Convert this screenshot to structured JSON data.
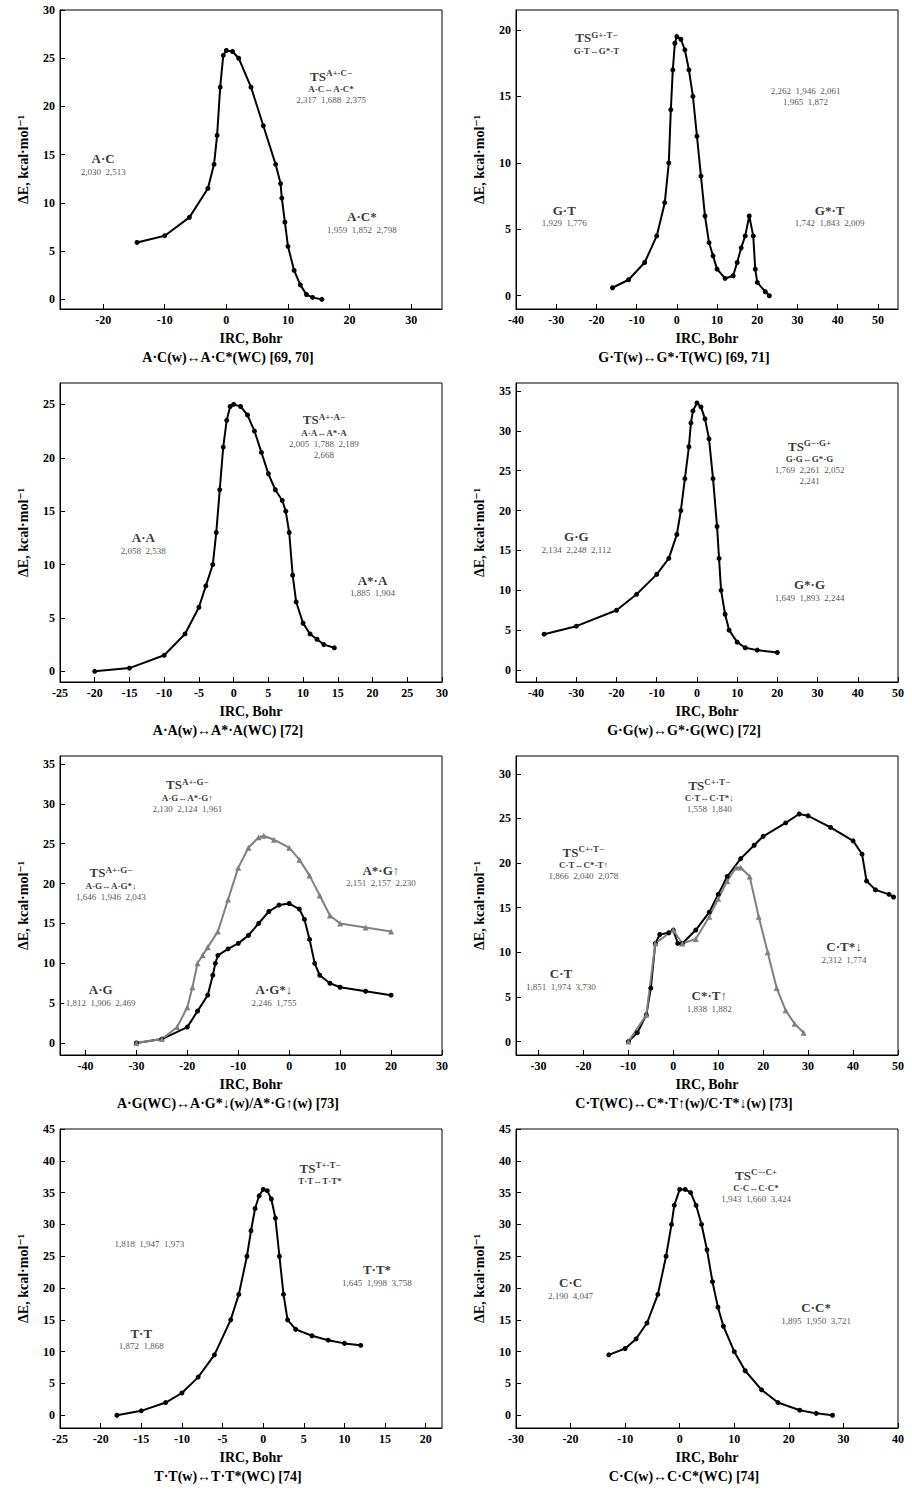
{
  "chart_data": [
    {
      "type": "line",
      "title": "A·C(w)↔A·C*(WC) [69, 70]",
      "x_label": "IRC, Bohr",
      "y_label": "ΔE, kcal·mol⁻¹",
      "xlim": [
        -27,
        35
      ],
      "xticks": [
        -20,
        -10,
        0,
        10,
        20,
        30
      ],
      "ylim": [
        -1,
        30
      ],
      "yticks": [
        0,
        5,
        10,
        15,
        20,
        25,
        30
      ],
      "grid": false,
      "series": [
        {
          "color": "#000000",
          "marker": "circle",
          "x": [
            -14.5,
            -10,
            -6,
            -3,
            -2,
            -1.5,
            -1,
            -0.5,
            0,
            1,
            2,
            4,
            6,
            8,
            8.8,
            9,
            9.5,
            10,
            11,
            12,
            13,
            14,
            15.5
          ],
          "values": [
            5.9,
            6.6,
            8.5,
            11.5,
            14,
            17,
            22,
            25.3,
            25.8,
            25.7,
            25,
            22,
            18,
            14,
            12,
            10.5,
            8,
            5.5,
            3,
            1.5,
            0.5,
            0.2,
            0
          ]
        }
      ],
      "annotations": [
        {
          "text": "A·C",
          "distances": [
            "2,030",
            "2,513"
          ],
          "x": -20,
          "y": 14
        },
        {
          "text": "TS",
          "sup": "A+·C−",
          "sub": "A·C↔A·C*",
          "distances": [
            "2,317",
            "1,688",
            "2,375"
          ],
          "x": 17,
          "y": 22
        },
        {
          "text": "A·C*",
          "distances": [
            "1,959",
            "1,852",
            "2,798"
          ],
          "x": 22,
          "y": 8
        }
      ]
    },
    {
      "type": "line",
      "title": "G·T(w)↔G*·T(WC) [69, 71]",
      "x_label": "IRC, Bohr",
      "y_label": "ΔE, kcal·mol⁻¹",
      "xlim": [
        -40,
        55
      ],
      "xticks": [
        -40,
        -30,
        -20,
        -10,
        0,
        10,
        20,
        30,
        40,
        50
      ],
      "ylim": [
        -1,
        21.5
      ],
      "yticks": [
        0,
        5,
        10,
        15,
        20
      ],
      "grid": false,
      "series": [
        {
          "color": "#000000",
          "marker": "circle",
          "x": [
            -16,
            -12,
            -8,
            -5,
            -3,
            -2,
            -1.5,
            -1,
            -0.5,
            0,
            1,
            2,
            3,
            4,
            5,
            6,
            7,
            8,
            9,
            10,
            12,
            14,
            15,
            16,
            17,
            18,
            19,
            19.5,
            20,
            22,
            23
          ],
          "values": [
            0.6,
            1.2,
            2.5,
            4.5,
            7,
            10,
            14,
            17,
            19,
            19.5,
            19.3,
            18.5,
            17,
            15,
            12,
            9,
            6,
            4,
            3,
            2,
            1.3,
            1.5,
            2.5,
            3.6,
            4.5,
            6,
            4.5,
            2,
            1,
            0.3,
            0
          ]
        }
      ],
      "annotations": [
        {
          "text": "G·T",
          "distances": [
            "1,929",
            "1,776"
          ],
          "x": -28,
          "y": 6
        },
        {
          "text": "TS",
          "sup": "G+·T−",
          "sub": "G·T↔G*·T",
          "x": -20,
          "y": 19
        },
        {
          "distances": [
            "2,262",
            "1,946",
            "2,061",
            "1,965",
            "1,872"
          ],
          "x": 32,
          "y": 15
        },
        {
          "text": "G*·T",
          "distances": [
            "1,742",
            "1,843",
            "2,009"
          ],
          "x": 38,
          "y": 6
        }
      ]
    },
    {
      "type": "line",
      "title": "A·A(w)↔A*·A(WC) [72]",
      "x_label": "IRC, Bohr",
      "y_label": "ΔE, kcal·mol⁻¹",
      "xlim": [
        -25,
        30
      ],
      "xticks": [
        -25,
        -20,
        -15,
        -10,
        -5,
        0,
        5,
        10,
        15,
        20,
        25,
        30
      ],
      "ylim": [
        -1,
        27
      ],
      "yticks": [
        0,
        5,
        10,
        15,
        20,
        25
      ],
      "grid": false,
      "series": [
        {
          "color": "#000000",
          "marker": "circle",
          "x": [
            -20,
            -15,
            -10,
            -7,
            -5,
            -4,
            -3,
            -2.5,
            -2,
            -1.5,
            -1,
            -0.5,
            0,
            1,
            2,
            3,
            4,
            5,
            6,
            7,
            7.5,
            8,
            8.5,
            9,
            10,
            11,
            12,
            13,
            14.5
          ],
          "values": [
            0,
            0.3,
            1.5,
            3.5,
            6,
            8,
            10,
            13,
            17,
            21,
            23.5,
            24.8,
            25,
            24.8,
            24,
            22.5,
            20.5,
            18.5,
            17,
            16,
            15,
            13,
            9,
            6.5,
            4.5,
            3.5,
            3,
            2.5,
            2.2
          ]
        }
      ],
      "annotations": [
        {
          "text": "A·A",
          "distances": [
            "2,058",
            "2,538"
          ],
          "x": -13,
          "y": 12
        },
        {
          "text": "TS",
          "sup": "A+·A−",
          "sub": "A·A↔A*·A",
          "distances": [
            "2,005",
            "1,788",
            "2,189",
            "2,668"
          ],
          "x": 13,
          "y": 22
        },
        {
          "text": "A*·A",
          "distances": [
            "1,885",
            "1,904"
          ],
          "x": 20,
          "y": 8
        }
      ]
    },
    {
      "type": "line",
      "title": "G·G(w)↔G*·G(WC) [72]",
      "x_label": "IRC, Bohr",
      "y_label": "ΔE, kcal·mol⁻¹",
      "xlim": [
        -45,
        50
      ],
      "xticks": [
        -40,
        -30,
        -20,
        -10,
        0,
        10,
        20,
        30,
        40,
        50
      ],
      "ylim": [
        -1.5,
        36
      ],
      "yticks": [
        0,
        5,
        10,
        15,
        20,
        25,
        30,
        35
      ],
      "grid": false,
      "series": [
        {
          "color": "#000000",
          "marker": "circle",
          "x": [
            -38,
            -30,
            -20,
            -15,
            -10,
            -7,
            -5,
            -4,
            -3,
            -2,
            -1.5,
            -1,
            0,
            1,
            2,
            3,
            4,
            5,
            5.5,
            6,
            7,
            8,
            10,
            12,
            15,
            20
          ],
          "values": [
            4.5,
            5.5,
            7.5,
            9.5,
            12,
            14,
            17,
            20,
            24,
            28,
            31,
            32.5,
            33.5,
            33,
            31.5,
            29,
            24,
            18,
            14,
            10,
            7,
            5,
            3.5,
            2.8,
            2.5,
            2.2
          ]
        }
      ],
      "annotations": [
        {
          "text": "G·G",
          "distances": [
            "2,134",
            "2,248",
            "2,112"
          ],
          "x": -30,
          "y": 16
        },
        {
          "text": "TS",
          "sup": "G−·G+",
          "sub": "G·G↔G*·G",
          "distances": [
            "1,769",
            "2,261",
            "2,052",
            "2,241"
          ],
          "x": 28,
          "y": 26
        },
        {
          "text": "G*·G",
          "distances": [
            "1,649",
            "1,893",
            "2,244"
          ],
          "x": 28,
          "y": 10
        }
      ]
    },
    {
      "type": "line",
      "title": "A·G(WC)↔A·G*↓(w)/A*·G↑(w) [73]",
      "x_label": "IRC, Bohr",
      "y_label": "ΔE, kcal·mol⁻¹",
      "xlim": [
        -45,
        30
      ],
      "xticks": [
        -40,
        -30,
        -20,
        -10,
        0,
        10,
        20,
        30
      ],
      "ylim": [
        -1.5,
        36
      ],
      "yticks": [
        0,
        5,
        10,
        15,
        20,
        25,
        30,
        35
      ],
      "grid": false,
      "series": [
        {
          "color": "#000000",
          "marker": "circle",
          "x": [
            -30,
            -25,
            -20,
            -18,
            -16,
            -15,
            -14.5,
            -14,
            -12,
            -10,
            -8,
            -6,
            -4,
            -2,
            0,
            2,
            3,
            4,
            5,
            6,
            8,
            10,
            15,
            20
          ],
          "values": [
            0,
            0.5,
            2,
            4,
            6,
            8.5,
            10,
            11,
            11.8,
            12.5,
            13.5,
            15,
            16.5,
            17.3,
            17.5,
            16.8,
            15.5,
            13,
            10,
            8.5,
            7.5,
            7,
            6.5,
            6
          ]
        },
        {
          "color": "#808080",
          "marker": "triangle",
          "x": [
            -30,
            -25,
            -22,
            -20,
            -19,
            -18,
            -17,
            -16,
            -14,
            -12,
            -10,
            -8,
            -6,
            -5,
            -3,
            0,
            2,
            4,
            6,
            8,
            10,
            15,
            20
          ],
          "values": [
            0,
            0.5,
            2,
            4.5,
            7,
            10,
            11,
            12,
            14,
            18,
            22,
            24.5,
            25.8,
            26,
            25.5,
            24.5,
            23,
            21,
            18.5,
            16,
            15,
            14.5,
            14
          ]
        }
      ],
      "annotations": [
        {
          "text": "A·G",
          "distances": [
            "1,812",
            "1,906",
            "2,469"
          ],
          "x": -37,
          "y": 6
        },
        {
          "text": "TS",
          "sup": "A+·G−",
          "sub": "A·G↔A*·G↑",
          "distances": [
            "2,130",
            "2,124",
            "1,961"
          ],
          "x": -20,
          "y": 31
        },
        {
          "text": "TS",
          "sup": "A+·G−",
          "sub": "A·G↔A·G*↓",
          "distances": [
            "1,646",
            "1,946",
            "2,043"
          ],
          "x": -35,
          "y": 20
        },
        {
          "text": "A*·G↑",
          "distances": [
            "2,151",
            "2,157",
            "2,230"
          ],
          "x": 18,
          "y": 21
        },
        {
          "text": "A·G*↓",
          "distances": [
            "2,246",
            "1,755"
          ],
          "x": -3,
          "y": 6
        }
      ]
    },
    {
      "type": "line",
      "title": "C·T(WC)↔C*·T↑(w)/C·T*↓(w) [73]",
      "x_label": "IRC, Bohr",
      "y_label": "ΔE, kcal·mol⁻¹",
      "xlim": [
        -35,
        50
      ],
      "xticks": [
        -30,
        -20,
        -10,
        0,
        10,
        20,
        30,
        40,
        50
      ],
      "ylim": [
        -1.5,
        32
      ],
      "yticks": [
        0,
        5,
        10,
        15,
        20,
        25,
        30
      ],
      "grid": false,
      "series": [
        {
          "color": "#000000",
          "marker": "circle",
          "x": [
            -10,
            -8,
            -6,
            -5,
            -4,
            -3,
            -1,
            0,
            1,
            2,
            5,
            8,
            10,
            12,
            15,
            18,
            20,
            25,
            28,
            30,
            35,
            40,
            42,
            43,
            45,
            48,
            49
          ],
          "values": [
            0,
            1,
            3,
            6,
            11,
            12,
            12.2,
            12.5,
            11,
            11,
            12.5,
            14.5,
            16.5,
            18.5,
            20.5,
            22,
            23,
            24.5,
            25.5,
            25.3,
            24,
            22.5,
            21,
            18,
            17,
            16.5,
            16.2
          ]
        },
        {
          "color": "#808080",
          "marker": "triangle",
          "x": [
            -10,
            -6,
            -4,
            0,
            2,
            5,
            8,
            10,
            12,
            14,
            15,
            17,
            19,
            21,
            23,
            25,
            27,
            29
          ],
          "values": [
            0,
            3,
            11,
            12.5,
            11,
            11.5,
            14,
            16,
            18,
            19.5,
            19.5,
            18.5,
            14,
            10,
            6,
            3.5,
            2,
            1
          ]
        }
      ],
      "annotations": [
        {
          "text": "C·T",
          "distances": [
            "1,851",
            "1,974",
            "3,730"
          ],
          "x": -25,
          "y": 7
        },
        {
          "text": "TS",
          "sup": "C+·T−",
          "sub": "C·T↔C*·T↑",
          "distances": [
            "1,866",
            "2,040",
            "2,078"
          ],
          "x": -20,
          "y": 20
        },
        {
          "text": "TS",
          "sup": "C+·T−",
          "sub": "C·T↔C·T*↓",
          "distances": [
            "1,558",
            "1,840"
          ],
          "x": 8,
          "y": 27.5
        },
        {
          "text": "C*·T↑",
          "distances": [
            "1,838",
            "1,882"
          ],
          "x": 8,
          "y": 4.5
        },
        {
          "text": "C·T*↓",
          "distances": [
            "2,312",
            "1,774"
          ],
          "x": 38,
          "y": 10
        }
      ]
    },
    {
      "type": "line",
      "title": "T·T(w)↔T·T*(WC) [74]",
      "x_label": "IRC, Bohr",
      "y_label": "ΔE, kcal·mol⁻¹",
      "xlim": [
        -25,
        22
      ],
      "xticks": [
        -25,
        -20,
        -15,
        -10,
        -5,
        0,
        5,
        10,
        15,
        20
      ],
      "ylim": [
        -2,
        45
      ],
      "yticks": [
        0,
        5,
        10,
        15,
        20,
        25,
        30,
        35,
        40,
        45
      ],
      "grid": false,
      "series": [
        {
          "color": "#000000",
          "marker": "circle",
          "x": [
            -18,
            -15,
            -12,
            -10,
            -8,
            -6,
            -4,
            -3,
            -2,
            -1.5,
            -1,
            -0.5,
            0,
            0.5,
            1,
            1.5,
            2,
            2.5,
            3,
            4,
            6,
            8,
            10,
            12
          ],
          "values": [
            0,
            0.7,
            2,
            3.5,
            6,
            9.5,
            15,
            19,
            25,
            29,
            32.5,
            34.5,
            35.5,
            35.3,
            34,
            31,
            25,
            19,
            15,
            13.5,
            12.5,
            11.8,
            11.3,
            11
          ]
        }
      ],
      "annotations": [
        {
          "text": "T·T",
          "distances": [
            "1,872",
            "1,868"
          ],
          "x": -15,
          "y": 12
        },
        {
          "distances": [
            "1,818",
            "1,947",
            "1,973"
          ],
          "x": -14,
          "y": 27
        },
        {
          "text": "TS",
          "sup": "T+·T−",
          "sub": "T·T↔T·T*",
          "x": 7,
          "y": 38
        },
        {
          "text": "T·T*",
          "distances": [
            "1,645",
            "1,998",
            "3,758"
          ],
          "x": 14,
          "y": 22
        }
      ]
    },
    {
      "type": "line",
      "title": "C·C(w)↔C·C*(WC) [74]",
      "x_label": "IRC, Bohr",
      "y_label": "ΔE, kcal·mol⁻¹",
      "xlim": [
        -30,
        40
      ],
      "xticks": [
        -30,
        -20,
        -10,
        0,
        10,
        20,
        30,
        40
      ],
      "ylim": [
        -2,
        45
      ],
      "yticks": [
        0,
        5,
        10,
        15,
        20,
        25,
        30,
        35,
        40,
        45
      ],
      "grid": false,
      "series": [
        {
          "color": "#000000",
          "marker": "circle",
          "x": [
            -13,
            -10,
            -8,
            -6,
            -4,
            -2.5,
            -1.5,
            -1,
            0,
            1,
            2,
            3,
            4,
            5,
            6,
            7,
            8,
            10,
            12,
            15,
            18,
            22,
            25,
            28
          ],
          "values": [
            9.5,
            10.5,
            12,
            14.5,
            19,
            25,
            30,
            33,
            35.5,
            35.5,
            35,
            33,
            30,
            26,
            21,
            17,
            14,
            10,
            7,
            4,
            2,
            0.8,
            0.3,
            0
          ]
        }
      ],
      "annotations": [
        {
          "text": "C·C",
          "distances": [
            "2,190",
            "4,047"
          ],
          "x": -20,
          "y": 20
        },
        {
          "text": "TS",
          "sup": "C−·C+",
          "sub": "C·C↔C·C*",
          "distances": [
            "1,943",
            "1,660",
            "3,424"
          ],
          "x": 14,
          "y": 36
        },
        {
          "text": "C·C*",
          "distances": [
            "1,895",
            "1,950",
            "3,721"
          ],
          "x": 25,
          "y": 16
        }
      ]
    }
  ]
}
